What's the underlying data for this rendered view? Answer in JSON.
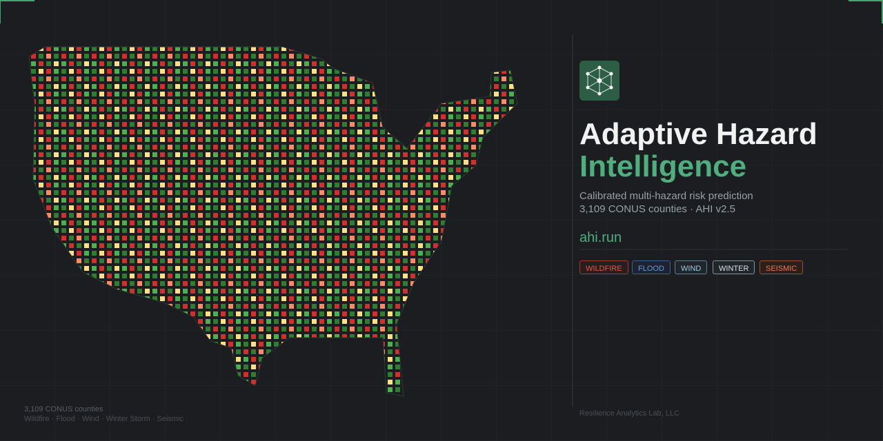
{
  "header": {
    "title_line1": "Adaptive Hazard",
    "title_line2": "Intelligence",
    "subtitle_line1": "Calibrated multi-hazard risk prediction",
    "subtitle_line2": "3,109 CONUS counties · AHI v2.5",
    "url": "ahi.run"
  },
  "tags": [
    "WILDFIRE",
    "FLOOD",
    "WIND",
    "WINTER",
    "SEISMIC"
  ],
  "footer": {
    "line1": "3,109 CONUS counties",
    "line2": "Wildfire · Flood · Wind · Winter Storm · Seismic",
    "credit": "Resilience Analytics Lab, LLC"
  }
}
